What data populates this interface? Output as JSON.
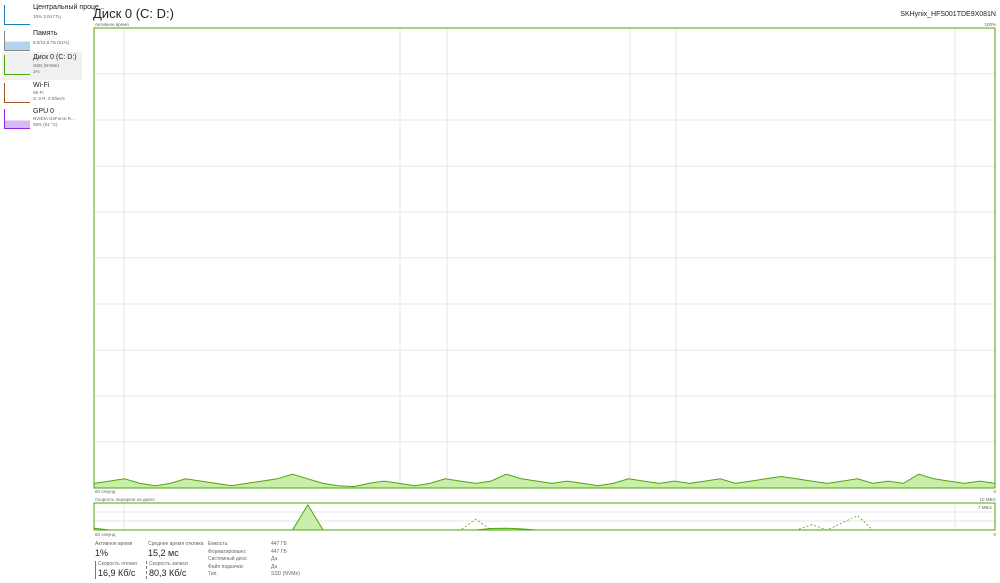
{
  "sidebar": {
    "items": [
      {
        "title": "Центральный проце...",
        "sub1": "10% 3,04 ГГц",
        "sub2": ""
      },
      {
        "title": "Память",
        "sub1": "8,0/15,8 ГБ (51%)",
        "sub2": ""
      },
      {
        "title": "Диск 0 (C: D:)",
        "sub1": "SSD (NVMe)",
        "sub2": "1%"
      },
      {
        "title": "Wi-Fi",
        "sub1": "Wi-Fi",
        "sub2": "S: 0 R: 0 Кбит/с"
      },
      {
        "title": "GPU 0",
        "sub1": "NVIDIA GeForce R...",
        "sub2": "39% (51 °C)"
      }
    ]
  },
  "header": {
    "title": "Диск 0 (C: D:)",
    "model": "SKHynix_HFS001TDE9X081N"
  },
  "activity_chart": {
    "label": "Активное время",
    "max": "100%",
    "time": "60 секунд",
    "min": "0",
    "color": "#4da60c",
    "fill": "#c9eeaa",
    "values": [
      1,
      1.5,
      2,
      1,
      0.5,
      1,
      2,
      1.5,
      1,
      0.5,
      1,
      1.5,
      2,
      3,
      2,
      1,
      0.5,
      0.3,
      1,
      1.5,
      1,
      0.5,
      1,
      2,
      1.5,
      1,
      1.5,
      3,
      2,
      1.5,
      1,
      1.5,
      1,
      0.5,
      1,
      2,
      1.5,
      1,
      1.5,
      1,
      1.5,
      2,
      1,
      1.5,
      2,
      2.5,
      2,
      1.5,
      1,
      1.5,
      2,
      1,
      1.5,
      1,
      3,
      2,
      1.5,
      1,
      1.5,
      1
    ]
  },
  "transfer_chart": {
    "label": "Скорость передачи на диске",
    "max": "10 МБ/с",
    "inner": "7 МБ/с",
    "time": "60 секунд",
    "min": "0",
    "read": [
      0.5,
      0,
      0,
      0,
      0,
      0,
      0,
      0,
      0,
      0,
      0,
      0,
      0,
      0,
      7,
      0,
      0,
      0,
      0,
      0,
      0,
      0,
      0,
      0,
      0,
      0,
      0.4,
      0.5,
      0.3,
      0,
      0,
      0,
      0,
      0,
      0,
      0,
      0,
      0,
      0,
      0,
      0,
      0,
      0,
      0,
      0,
      0,
      0,
      0,
      0,
      0,
      0,
      0,
      0,
      0,
      0,
      0,
      0,
      0,
      0,
      0
    ],
    "write": [
      0,
      0,
      0,
      0,
      0,
      0,
      0,
      0,
      0,
      0,
      0,
      0,
      0,
      0,
      0,
      0,
      0,
      0,
      0,
      0,
      0,
      0,
      0,
      0,
      0,
      3,
      0,
      0,
      0,
      0,
      0,
      0,
      0,
      0,
      0,
      0,
      0,
      0,
      0,
      0,
      0,
      0,
      0,
      0,
      0,
      0,
      0,
      1.5,
      0,
      2,
      4,
      0,
      0,
      0,
      0,
      0,
      0,
      0,
      0,
      0
    ]
  },
  "stats": {
    "active_label": "Активное время",
    "active": "1%",
    "resp_label": "Среднее время отклика",
    "resp": "15,2 мс",
    "read_label": "Скорость чтения",
    "read": "16,9 Кб/с",
    "write_label": "Скорость записи",
    "write": "80,3 Кб/с"
  },
  "props": [
    {
      "k": "Емкость:",
      "v": "447 ГБ"
    },
    {
      "k": "Форматировано:",
      "v": "447 ГБ"
    },
    {
      "k": "Системный диск:",
      "v": "Да"
    },
    {
      "k": "Файл подкачки:",
      "v": "Да"
    },
    {
      "k": "Тип:",
      "v": "SSD (NVMe)"
    }
  ]
}
